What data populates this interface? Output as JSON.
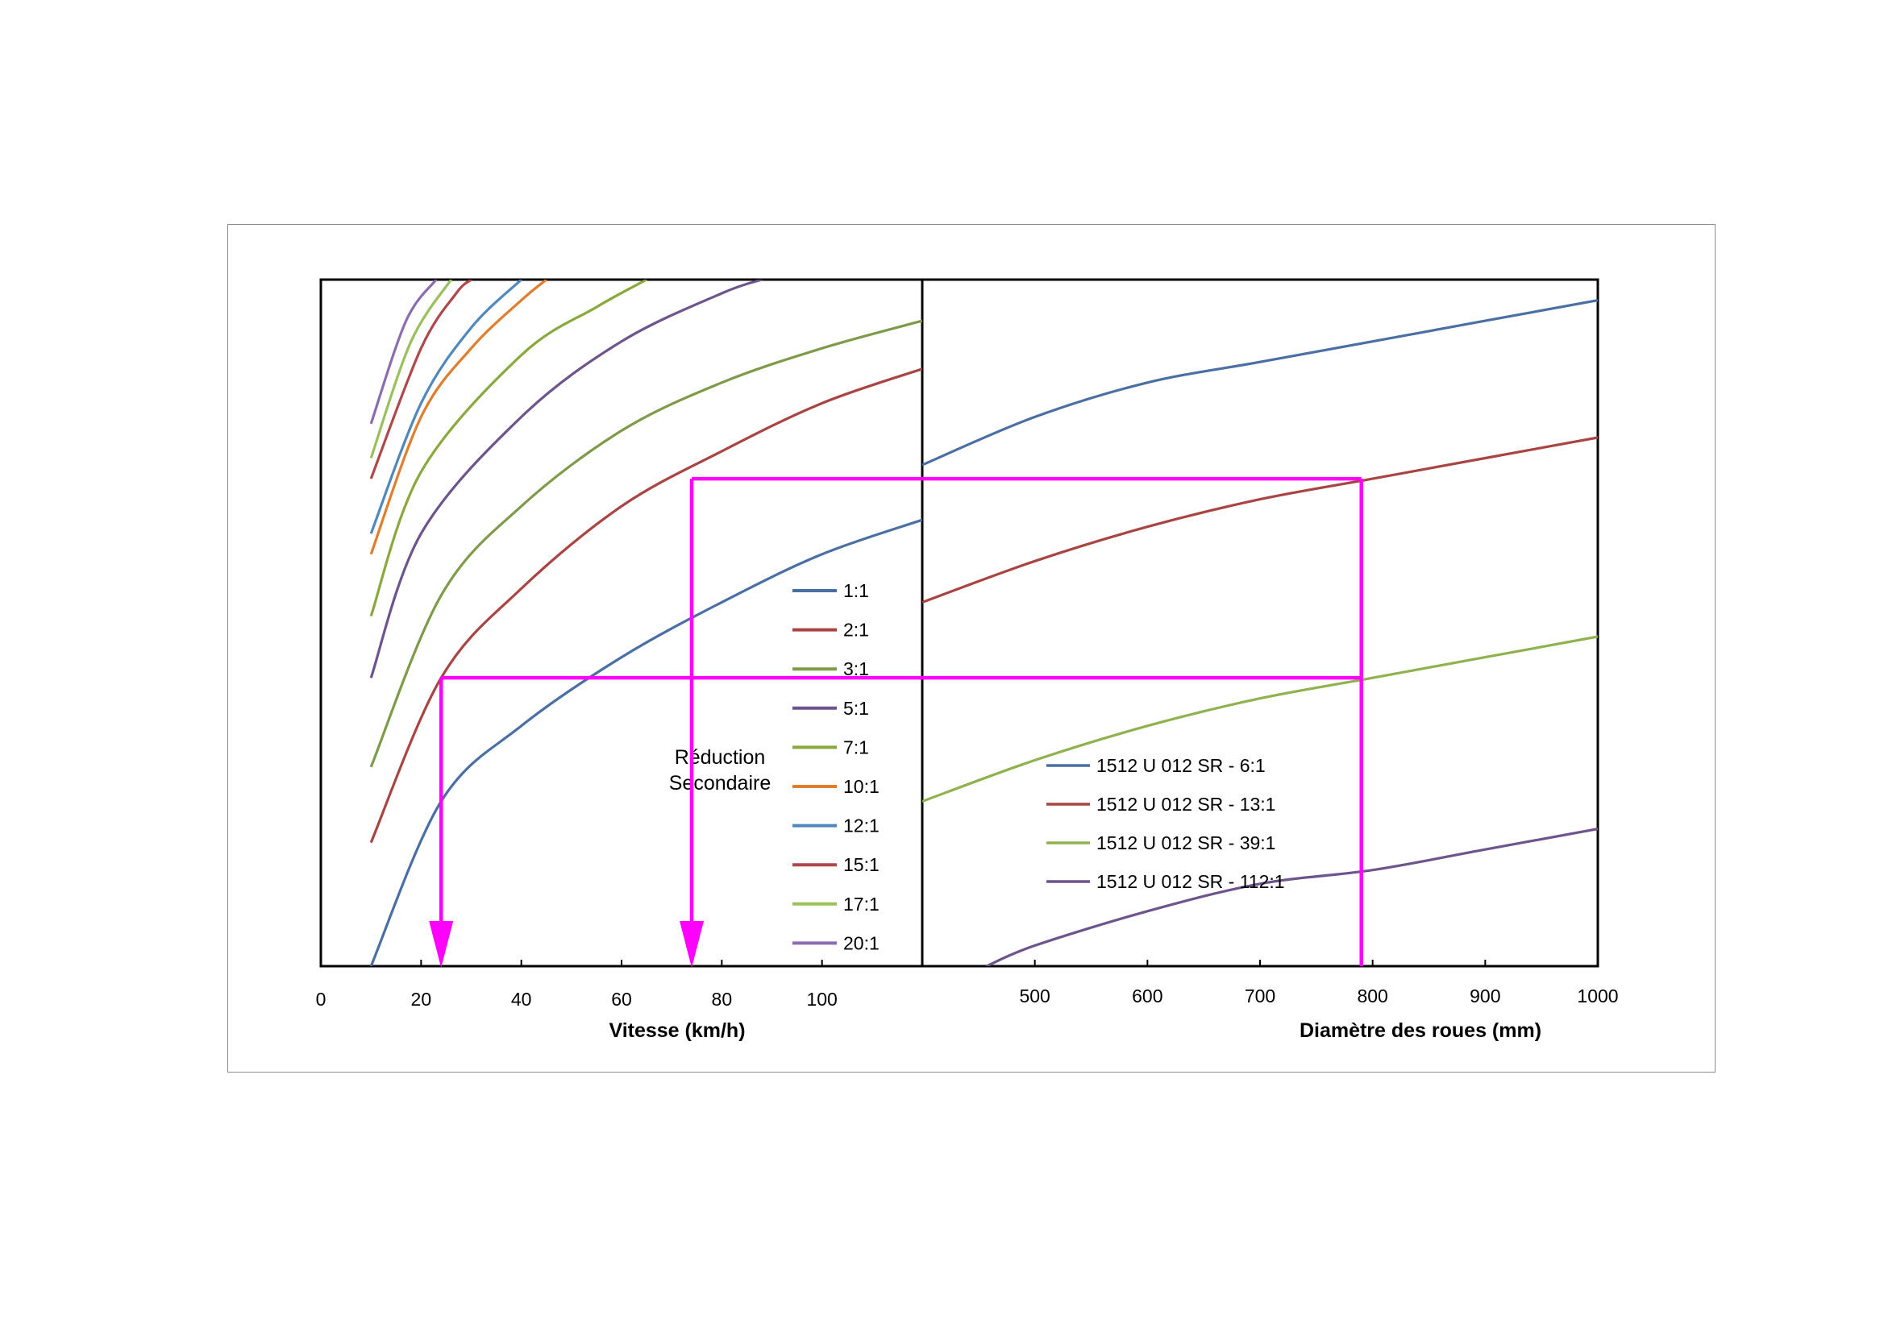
{
  "chart_data": [
    {
      "type": "line",
      "xlabel": "Vitesse (km/h)",
      "x_ticks": [
        "0",
        "20",
        "40",
        "60",
        "80",
        "100"
      ],
      "xlim": [
        0,
        120
      ],
      "ylim": [
        0,
        1
      ],
      "grid": false,
      "legend": {
        "title_lines": [
          "Réduction",
          "Secondaire"
        ],
        "placement": "inside-right"
      },
      "series": [
        {
          "name": "1:1",
          "color": "#4a6fa5",
          "x": [
            10,
            24,
            40,
            60,
            80,
            100,
            120
          ],
          "y": [
            0.0,
            0.24,
            0.35,
            0.45,
            0.53,
            0.6,
            0.65
          ]
        },
        {
          "name": "2:1",
          "color": "#a94443",
          "x": [
            10,
            24,
            40,
            60,
            80,
            100,
            120
          ],
          "y": [
            0.18,
            0.42,
            0.55,
            0.67,
            0.75,
            0.82,
            0.87
          ]
        },
        {
          "name": "3:1",
          "color": "#7f9a48",
          "x": [
            10,
            24,
            40,
            60,
            80,
            100,
            120
          ],
          "y": [
            0.29,
            0.54,
            0.67,
            0.78,
            0.85,
            0.9,
            0.94
          ]
        },
        {
          "name": "5:1",
          "color": "#6e548d",
          "x": [
            10,
            20,
            40,
            60,
            80,
            88
          ],
          "y": [
            0.42,
            0.63,
            0.8,
            0.91,
            0.98,
            1.0
          ]
        },
        {
          "name": "7:1",
          "color": "#8aa93d",
          "x": [
            10,
            20,
            40,
            55,
            65
          ],
          "y": [
            0.51,
            0.72,
            0.89,
            0.96,
            1.0
          ]
        },
        {
          "name": "10:1",
          "color": "#e07e2d",
          "x": [
            10,
            20,
            30,
            40,
            45
          ],
          "y": [
            0.6,
            0.8,
            0.9,
            0.97,
            1.0
          ]
        },
        {
          "name": "12:1",
          "color": "#4f87bf",
          "x": [
            10,
            20,
            30,
            40
          ],
          "y": [
            0.63,
            0.82,
            0.93,
            1.0
          ]
        },
        {
          "name": "15:1",
          "color": "#b0474a",
          "x": [
            10,
            20,
            27,
            30
          ],
          "y": [
            0.71,
            0.9,
            0.98,
            1.0
          ]
        },
        {
          "name": "17:1",
          "color": "#9ac05c",
          "x": [
            10,
            18,
            26
          ],
          "y": [
            0.74,
            0.91,
            1.0
          ]
        },
        {
          "name": "20:1",
          "color": "#8b6cb0",
          "x": [
            10,
            17,
            23
          ],
          "y": [
            0.79,
            0.94,
            1.0
          ]
        }
      ]
    },
    {
      "type": "line",
      "xlabel": "Diamètre des roues (mm)",
      "x_ticks": [
        "500",
        "600",
        "700",
        "800",
        "900",
        "1000"
      ],
      "xlim": [
        400,
        1000
      ],
      "ylim": [
        0,
        1
      ],
      "grid": false,
      "legend": {
        "placement": "inside-bottom-center"
      },
      "series": [
        {
          "name": "1512 U 012 SR - 6:1",
          "color": "#4a6fa5",
          "x": [
            400,
            500,
            600,
            700,
            800,
            900,
            1000
          ],
          "y": [
            0.73,
            0.8,
            0.85,
            0.88,
            0.91,
            0.94,
            0.97
          ]
        },
        {
          "name": "1512 U 012 SR - 13:1",
          "color": "#a94443",
          "x": [
            400,
            500,
            600,
            700,
            800,
            900,
            1000
          ],
          "y": [
            0.53,
            0.59,
            0.64,
            0.68,
            0.71,
            0.74,
            0.77
          ]
        },
        {
          "name": "1512 U 012 SR - 39:1",
          "color": "#8fb24f",
          "x": [
            400,
            500,
            600,
            700,
            800,
            900,
            1000
          ],
          "y": [
            0.24,
            0.3,
            0.35,
            0.39,
            0.42,
            0.45,
            0.48
          ]
        },
        {
          "name": "1512 U 012 SR - 112:1",
          "color": "#6e548d",
          "x": [
            457,
            500,
            600,
            700,
            800,
            900,
            1000
          ],
          "y": [
            0.0,
            0.03,
            0.08,
            0.12,
            0.14,
            0.17,
            0.2
          ]
        }
      ]
    }
  ],
  "annotations": {
    "color": "#ff00ff",
    "wheel_diameter_mm": 790,
    "speeds_kmh": [
      24,
      74
    ],
    "vertical_line": {
      "x_mm": 790,
      "y_range": [
        0,
        0.71
      ]
    },
    "paths": [
      {
        "from_speed_kmh": 24,
        "level_y": 0.42
      },
      {
        "from_speed_kmh": 74,
        "level_y": 0.71
      }
    ]
  }
}
